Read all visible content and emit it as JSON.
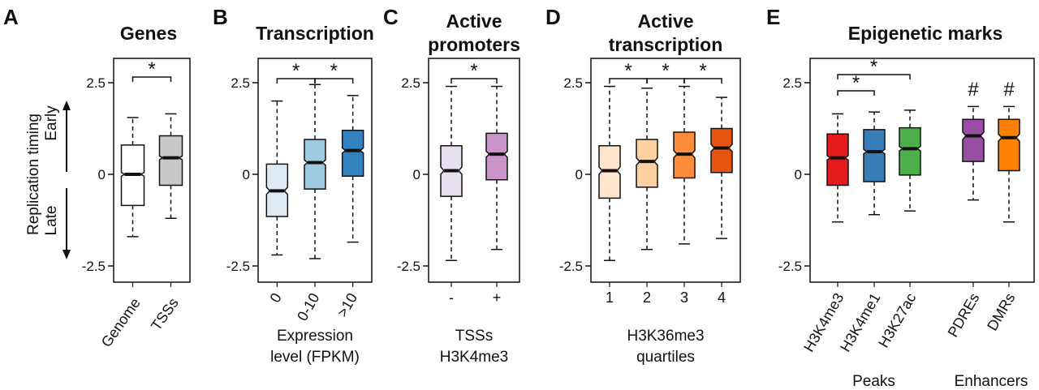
{
  "ylabel": {
    "main": "Replication timing",
    "early": "Early",
    "late": "Late"
  },
  "chart_data": [
    {
      "type": "box",
      "letter": "A",
      "title": [
        "Genes"
      ],
      "ylim": [
        -2.5,
        2.5
      ],
      "yticks": [
        2.5,
        0,
        -2.5
      ],
      "ytick_labels": [
        "2.5",
        "0",
        "-2.5"
      ],
      "categories": [
        "Genome",
        "TSSs"
      ],
      "xlabel": [],
      "groups": [],
      "boxes": [
        {
          "label": "Genome",
          "color": "#ffffff",
          "whisker_low": -1.7,
          "q1": -0.85,
          "median": 0.0,
          "q3": 0.8,
          "whisker_high": 1.55,
          "notch": 0.05
        },
        {
          "label": "TSSs",
          "color": "#c8c8c8",
          "whisker_low": -1.2,
          "q1": -0.3,
          "median": 0.45,
          "q3": 1.05,
          "whisker_high": 1.65,
          "notch": 0.05
        }
      ],
      "significance": [
        {
          "from": 0,
          "to": 1,
          "label": "*",
          "level": 0
        }
      ]
    },
    {
      "type": "box",
      "letter": "B",
      "title": [
        "Transcription"
      ],
      "ylim": [
        -2.5,
        2.5
      ],
      "yticks": [
        2.5,
        0,
        -2.5
      ],
      "ytick_labels": [
        "2.5",
        "0",
        "-2.5"
      ],
      "categories": [
        "0",
        "0-10",
        ">10"
      ],
      "xlabel": [
        "Expression",
        "level (FPKM)"
      ],
      "groups": [],
      "boxes": [
        {
          "label": "0",
          "color": "#deebf7",
          "whisker_low": -2.2,
          "q1": -1.15,
          "median": -0.45,
          "q3": 0.28,
          "whisker_high": 2.0,
          "notch": 0.1
        },
        {
          "label": "0-10",
          "color": "#9ecae1",
          "whisker_low": -2.3,
          "q1": -0.4,
          "median": 0.32,
          "q3": 0.95,
          "whisker_high": 2.45,
          "notch": 0.07
        },
        {
          "label": ">10",
          "color": "#3182bd",
          "whisker_low": -1.85,
          "q1": -0.05,
          "median": 0.65,
          "q3": 1.2,
          "whisker_high": 2.15,
          "notch": 0.07
        }
      ],
      "significance": [
        {
          "from": 0,
          "to": 1,
          "label": "*",
          "level": 0
        },
        {
          "from": 1,
          "to": 2,
          "label": "*",
          "level": 0
        }
      ]
    },
    {
      "type": "box",
      "letter": "C",
      "title": [
        "Active",
        "promoters"
      ],
      "ylim": [
        -2.5,
        2.5
      ],
      "yticks": [
        2.5,
        0,
        -2.5
      ],
      "ytick_labels": [
        "2.5",
        "0",
        "-2.5"
      ],
      "categories": [
        "-",
        "+"
      ],
      "xlabel": [
        "TSSs",
        "H3K4me3"
      ],
      "groups": [],
      "boxes": [
        {
          "label": "-",
          "color": "#e7e1ef",
          "whisker_low": -2.35,
          "q1": -0.6,
          "median": 0.1,
          "q3": 0.78,
          "whisker_high": 2.4,
          "notch": 0.1
        },
        {
          "label": "+",
          "color": "#c994c7",
          "whisker_low": -2.05,
          "q1": -0.15,
          "median": 0.55,
          "q3": 1.12,
          "whisker_high": 2.4,
          "notch": 0.08
        }
      ],
      "significance": [
        {
          "from": 0,
          "to": 1,
          "label": "*",
          "level": 0
        }
      ]
    },
    {
      "type": "box",
      "letter": "D",
      "title": [
        "Active",
        "transcription"
      ],
      "ylim": [
        -2.5,
        2.5
      ],
      "yticks": [
        2.5,
        0,
        -2.5
      ],
      "ytick_labels": [
        "2.5",
        "0",
        "-2.5"
      ],
      "categories": [
        "1",
        "2",
        "3",
        "4"
      ],
      "xlabel": [
        "H3K36me3",
        "quartiles"
      ],
      "groups": [],
      "boxes": [
        {
          "label": "1",
          "color": "#fee6ce",
          "whisker_low": -2.35,
          "q1": -0.65,
          "median": 0.1,
          "q3": 0.78,
          "whisker_high": 2.4,
          "notch": 0.1
        },
        {
          "label": "2",
          "color": "#fdd0a2",
          "whisker_low": -2.05,
          "q1": -0.35,
          "median": 0.35,
          "q3": 0.95,
          "whisker_high": 2.35,
          "notch": 0.1
        },
        {
          "label": "3",
          "color": "#fd8d3c",
          "whisker_low": -1.9,
          "q1": -0.1,
          "median": 0.55,
          "q3": 1.15,
          "whisker_high": 2.4,
          "notch": 0.1
        },
        {
          "label": "4",
          "color": "#e6550d",
          "whisker_low": -1.75,
          "q1": 0.05,
          "median": 0.72,
          "q3": 1.25,
          "whisker_high": 2.1,
          "notch": 0.1
        }
      ],
      "significance": [
        {
          "from": 0,
          "to": 1,
          "label": "*",
          "level": 0
        },
        {
          "from": 1,
          "to": 2,
          "label": "*",
          "level": 0
        },
        {
          "from": 2,
          "to": 3,
          "label": "*",
          "level": 0
        }
      ]
    },
    {
      "type": "box",
      "letter": "E",
      "title": [
        "Epigenetic marks"
      ],
      "ylim": [
        -2.5,
        2.5
      ],
      "yticks": [
        2.5,
        0,
        -2.5
      ],
      "ytick_labels": [
        "2.5",
        "0",
        "-2.5"
      ],
      "categories": [
        "H3K4me3",
        "H3K4me1",
        "H3K27ac",
        "PDREs",
        "DMRs"
      ],
      "xlabel": [],
      "groups": [
        {
          "label": "Peaks",
          "from": 0,
          "to": 2
        },
        {
          "label": "Enhancers",
          "from": 3,
          "to": 4
        }
      ],
      "boxes": [
        {
          "label": "H3K4me3",
          "color": "#e41a1c",
          "whisker_low": -1.3,
          "q1": -0.3,
          "median": 0.45,
          "q3": 1.1,
          "whisker_high": 1.65,
          "notch": 0.06
        },
        {
          "label": "H3K4me1",
          "color": "#377eb8",
          "whisker_low": -1.1,
          "q1": -0.2,
          "median": 0.62,
          "q3": 1.22,
          "whisker_high": 1.7,
          "notch": 0.06
        },
        {
          "label": "H3K27ac",
          "color": "#4daf4a",
          "whisker_low": -1.0,
          "q1": -0.02,
          "median": 0.7,
          "q3": 1.27,
          "whisker_high": 1.75,
          "notch": 0.06
        },
        {
          "label": "PDREs",
          "color": "#984ea3",
          "whisker_low": -0.7,
          "q1": 0.35,
          "median": 1.05,
          "q3": 1.5,
          "whisker_high": 1.85,
          "notch": 0.1
        },
        {
          "label": "DMRs",
          "color": "#ff7f00",
          "whisker_low": -1.3,
          "q1": 0.1,
          "median": 1.0,
          "q3": 1.5,
          "whisker_high": 1.85,
          "notch": 0.1
        }
      ],
      "significance": [
        {
          "from": 0,
          "to": 1,
          "label": "*",
          "level": 0
        },
        {
          "from": 0,
          "to": 2,
          "label": "*",
          "level": 1
        }
      ],
      "markers": [
        {
          "box": 3,
          "label": "#"
        },
        {
          "box": 4,
          "label": "#"
        }
      ]
    }
  ]
}
